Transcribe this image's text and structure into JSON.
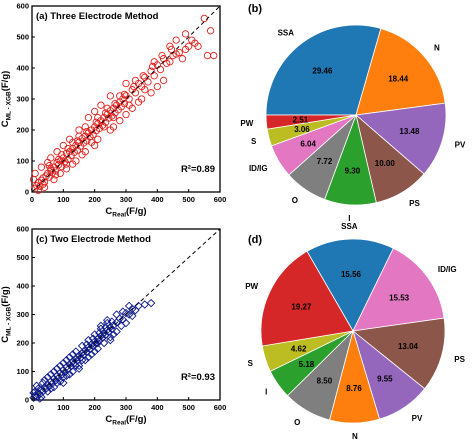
{
  "figure_title": "",
  "chart_data": [
    {
      "type": "scatter",
      "panel_label": "(a) Three Electrode Method",
      "xlabel": "C_Real(F/g)",
      "xlabel_main": "C",
      "xlabel_sub": "Real",
      "xlabel_unit": "(F/g)",
      "ylabel": "C_ML-XGB(F/g)",
      "ylabel_main": "C",
      "ylabel_sub": "ML - XGB",
      "ylabel_unit": "(F/g)",
      "xlim": [
        0,
        600
      ],
      "ylim": [
        0,
        600
      ],
      "xticks": [
        0,
        100,
        200,
        300,
        400,
        500,
        600
      ],
      "yticks": [
        0,
        100,
        200,
        300,
        400,
        500,
        600
      ],
      "annotation": "R²=0.89",
      "marker": "circle",
      "color": "#e0201c",
      "identity_line": true,
      "points": [
        [
          8,
          10
        ],
        [
          15,
          20
        ],
        [
          20,
          30
        ],
        [
          25,
          18
        ],
        [
          30,
          38
        ],
        [
          35,
          45
        ],
        [
          40,
          32
        ],
        [
          45,
          52
        ],
        [
          50,
          60
        ],
        [
          55,
          48
        ],
        [
          60,
          70
        ],
        [
          65,
          62
        ],
        [
          70,
          80
        ],
        [
          75,
          68
        ],
        [
          80,
          95
        ],
        [
          85,
          88
        ],
        [
          90,
          100
        ],
        [
          95,
          82
        ],
        [
          100,
          110
        ],
        [
          105,
          98
        ],
        [
          110,
          125
        ],
        [
          115,
          105
        ],
        [
          120,
          130
        ],
        [
          125,
          118
        ],
        [
          130,
          140
        ],
        [
          135,
          128
        ],
        [
          140,
          150
        ],
        [
          145,
          135
        ],
        [
          150,
          160
        ],
        [
          155,
          148
        ],
        [
          160,
          172
        ],
        [
          165,
          158
        ],
        [
          170,
          180
        ],
        [
          175,
          165
        ],
        [
          180,
          190
        ],
        [
          185,
          178
        ],
        [
          190,
          200
        ],
        [
          195,
          185
        ],
        [
          200,
          210
        ],
        [
          205,
          198
        ],
        [
          210,
          220
        ],
        [
          215,
          205
        ],
        [
          220,
          230
        ],
        [
          225,
          215
        ],
        [
          230,
          240
        ],
        [
          235,
          225
        ],
        [
          240,
          250
        ],
        [
          245,
          238
        ],
        [
          250,
          262
        ],
        [
          255,
          245
        ],
        [
          260,
          270
        ],
        [
          265,
          255
        ],
        [
          270,
          280
        ],
        [
          275,
          265
        ],
        [
          280,
          290
        ],
        [
          285,
          275
        ],
        [
          290,
          300
        ],
        [
          295,
          285
        ],
        [
          300,
          310
        ],
        [
          310,
          300
        ],
        [
          320,
          330
        ],
        [
          330,
          320
        ],
        [
          340,
          350
        ],
        [
          350,
          340
        ],
        [
          360,
          370
        ],
        [
          370,
          355
        ],
        [
          380,
          390
        ],
        [
          390,
          375
        ],
        [
          400,
          410
        ],
        [
          410,
          395
        ],
        [
          420,
          430
        ],
        [
          430,
          415
        ],
        [
          440,
          420
        ],
        [
          450,
          440
        ],
        [
          460,
          445
        ],
        [
          470,
          450
        ],
        [
          480,
          430
        ],
        [
          490,
          460
        ],
        [
          500,
          470
        ],
        [
          520,
          480
        ],
        [
          530,
          470
        ],
        [
          560,
          440
        ],
        [
          570,
          520
        ],
        [
          580,
          440
        ],
        [
          100,
          150
        ],
        [
          120,
          170
        ],
        [
          150,
          200
        ],
        [
          80,
          130
        ],
        [
          60,
          110
        ],
        [
          180,
          240
        ],
        [
          200,
          260
        ],
        [
          220,
          280
        ],
        [
          250,
          310
        ],
        [
          300,
          350
        ],
        [
          130,
          90
        ],
        [
          160,
          120
        ],
        [
          200,
          150
        ],
        [
          250,
          200
        ],
        [
          280,
          230
        ],
        [
          320,
          270
        ],
        [
          350,
          300
        ],
        [
          400,
          340
        ],
        [
          30,
          80
        ],
        [
          50,
          95
        ],
        [
          70,
          40
        ],
        [
          90,
          60
        ],
        [
          40,
          15
        ],
        [
          110,
          75
        ],
        [
          140,
          100
        ],
        [
          170,
          130
        ],
        [
          210,
          170
        ],
        [
          260,
          210
        ],
        [
          300,
          250
        ],
        [
          340,
          290
        ],
        [
          380,
          320
        ],
        [
          420,
          360
        ],
        [
          60,
          75
        ],
        [
          85,
          105
        ],
        [
          115,
          140
        ],
        [
          145,
          165
        ],
        [
          175,
          195
        ],
        [
          205,
          225
        ],
        [
          235,
          255
        ],
        [
          265,
          285
        ],
        [
          295,
          315
        ],
        [
          325,
          340
        ],
        [
          355,
          375
        ],
        [
          385,
          405
        ],
        [
          415,
          440
        ],
        [
          445,
          460
        ],
        [
          20,
          5
        ],
        [
          35,
          25
        ],
        [
          5,
          40
        ],
        [
          10,
          60
        ],
        [
          210,
          240
        ],
        [
          230,
          210
        ],
        [
          240,
          270
        ],
        [
          260,
          240
        ],
        [
          280,
          310
        ],
        [
          190,
          160
        ],
        [
          170,
          210
        ],
        [
          150,
          180
        ],
        [
          130,
          160
        ],
        [
          110,
          90
        ],
        [
          95,
          120
        ],
        [
          75,
          55
        ],
        [
          55,
          85
        ],
        [
          310,
          280
        ],
        [
          330,
          360
        ],
        [
          360,
          330
        ],
        [
          390,
          420
        ],
        [
          440,
          470
        ],
        [
          460,
          490
        ],
        [
          490,
          510
        ],
        [
          510,
          490
        ],
        [
          550,
          560
        ]
      ]
    },
    {
      "type": "pie",
      "panel_label": "(b)",
      "categories": [
        "SSA",
        "N",
        "PV",
        "PS",
        "I",
        "O",
        "I_D/I_G",
        "S",
        "PW"
      ],
      "display_labels": [
        "SSA",
        "N",
        "PV",
        "PS",
        "I",
        "O",
        "ID/IG",
        "S",
        "PW"
      ],
      "values": [
        29.46,
        18.44,
        13.48,
        10.0,
        9.3,
        7.72,
        6.04,
        3.06,
        2.51
      ],
      "value_labels": [
        "29.46",
        "18.44",
        "13.48",
        "10.00",
        "9.30",
        "7.72",
        "6.04",
        "3.06",
        "2.51"
      ],
      "colors": [
        "#1f77b4",
        "#ff7f0e",
        "#9467bd",
        "#8c564b",
        "#2ca02c",
        "#7f7f7f",
        "#e377c2",
        "#bcbd22",
        "#d62728"
      ],
      "start_angle_deg": 180,
      "direction": "clockwise"
    },
    {
      "type": "scatter",
      "panel_label": "(c) Two Electrode Method",
      "xlabel": "C_Real(F/g)",
      "xlabel_main": "C",
      "xlabel_sub": "Real",
      "xlabel_unit": "(F/g)",
      "ylabel": "C_ML-XGB(F/g)",
      "ylabel_main": "C",
      "ylabel_sub": "ML - XGB",
      "ylabel_unit": "(F/g)",
      "xlim": [
        0,
        600
      ],
      "ylim": [
        0,
        600
      ],
      "xticks": [
        0,
        100,
        200,
        300,
        400,
        500,
        600
      ],
      "yticks": [
        0,
        100,
        200,
        300,
        400,
        500,
        600
      ],
      "annotation": "R²=0.93",
      "marker": "diamond",
      "color": "#0d1a8c",
      "identity_line": true,
      "points": [
        [
          5,
          8
        ],
        [
          10,
          15
        ],
        [
          15,
          12
        ],
        [
          20,
          25
        ],
        [
          25,
          20
        ],
        [
          30,
          35
        ],
        [
          35,
          30
        ],
        [
          40,
          45
        ],
        [
          45,
          40
        ],
        [
          50,
          55
        ],
        [
          55,
          48
        ],
        [
          60,
          65
        ],
        [
          65,
          58
        ],
        [
          70,
          75
        ],
        [
          75,
          68
        ],
        [
          80,
          85
        ],
        [
          85,
          78
        ],
        [
          90,
          95
        ],
        [
          95,
          88
        ],
        [
          100,
          105
        ],
        [
          105,
          98
        ],
        [
          110,
          115
        ],
        [
          115,
          108
        ],
        [
          120,
          125
        ],
        [
          125,
          118
        ],
        [
          130,
          135
        ],
        [
          135,
          128
        ],
        [
          140,
          145
        ],
        [
          145,
          138
        ],
        [
          150,
          155
        ],
        [
          155,
          148
        ],
        [
          160,
          165
        ],
        [
          165,
          158
        ],
        [
          170,
          175
        ],
        [
          175,
          168
        ],
        [
          180,
          185
        ],
        [
          185,
          178
        ],
        [
          190,
          195
        ],
        [
          195,
          188
        ],
        [
          200,
          205
        ],
        [
          205,
          198
        ],
        [
          210,
          215
        ],
        [
          215,
          208
        ],
        [
          220,
          225
        ],
        [
          225,
          218
        ],
        [
          230,
          235
        ],
        [
          235,
          228
        ],
        [
          240,
          245
        ],
        [
          245,
          238
        ],
        [
          250,
          255
        ],
        [
          255,
          248
        ],
        [
          260,
          262
        ],
        [
          270,
          272
        ],
        [
          280,
          285
        ],
        [
          290,
          282
        ],
        [
          300,
          305
        ],
        [
          310,
          300
        ],
        [
          320,
          320
        ],
        [
          330,
          315
        ],
        [
          340,
          330
        ],
        [
          360,
          335
        ],
        [
          380,
          340
        ],
        [
          20,
          40
        ],
        [
          40,
          70
        ],
        [
          60,
          90
        ],
        [
          80,
          110
        ],
        [
          100,
          130
        ],
        [
          120,
          150
        ],
        [
          140,
          170
        ],
        [
          160,
          190
        ],
        [
          180,
          210
        ],
        [
          200,
          230
        ],
        [
          220,
          250
        ],
        [
          240,
          270
        ],
        [
          30,
          10
        ],
        [
          50,
          30
        ],
        [
          70,
          45
        ],
        [
          90,
          65
        ],
        [
          110,
          85
        ],
        [
          130,
          100
        ],
        [
          150,
          120
        ],
        [
          170,
          140
        ],
        [
          190,
          160
        ],
        [
          210,
          180
        ],
        [
          230,
          200
        ],
        [
          250,
          220
        ],
        [
          270,
          240
        ],
        [
          10,
          30
        ],
        [
          15,
          50
        ],
        [
          5,
          25
        ],
        [
          25,
          5
        ],
        [
          100,
          60
        ],
        [
          150,
          110
        ],
        [
          200,
          170
        ],
        [
          250,
          210
        ],
        [
          120,
          90
        ],
        [
          180,
          150
        ],
        [
          260,
          230
        ],
        [
          300,
          270
        ],
        [
          290,
          310
        ],
        [
          310,
          330
        ],
        [
          270,
          300
        ],
        [
          240,
          280
        ],
        [
          220,
          260
        ],
        [
          60,
          40
        ],
        [
          80,
          60
        ],
        [
          100,
          80
        ],
        [
          140,
          120
        ],
        [
          160,
          140
        ],
        [
          175,
          195
        ],
        [
          195,
          215
        ],
        [
          215,
          235
        ],
        [
          235,
          255
        ],
        [
          255,
          275
        ],
        [
          130,
          160
        ],
        [
          110,
          140
        ],
        [
          90,
          120
        ],
        [
          70,
          100
        ],
        [
          50,
          80
        ],
        [
          35,
          60
        ],
        [
          285,
          260
        ],
        [
          320,
          295
        ],
        [
          200,
          195
        ],
        [
          210,
          200
        ],
        [
          225,
          230
        ],
        [
          165,
          170
        ],
        [
          145,
          150
        ],
        [
          125,
          130
        ]
      ]
    },
    {
      "type": "pie",
      "panel_label": "(d)",
      "categories": [
        "SSA",
        "I_D/I_G",
        "PS",
        "PV",
        "N",
        "O",
        "I",
        "S",
        "PW"
      ],
      "display_labels": [
        "SSA",
        "ID/IG",
        "PS",
        "PV",
        "N",
        "O",
        "I",
        "S",
        "PW"
      ],
      "values": [
        15.56,
        15.53,
        13.04,
        9.55,
        8.76,
        8.5,
        5.18,
        4.62,
        19.27
      ],
      "value_labels": [
        "15.56",
        "15.53",
        "13.04",
        "9.55",
        "8.76",
        "8.50",
        "5.18",
        "4.62",
        "19.27"
      ],
      "colors": [
        "#1f77b4",
        "#e377c2",
        "#8c564b",
        "#9467bd",
        "#ff7f0e",
        "#7f7f7f",
        "#2ca02c",
        "#bcbd22",
        "#d62728"
      ],
      "start_angle_deg": 120,
      "direction": "clockwise"
    }
  ]
}
